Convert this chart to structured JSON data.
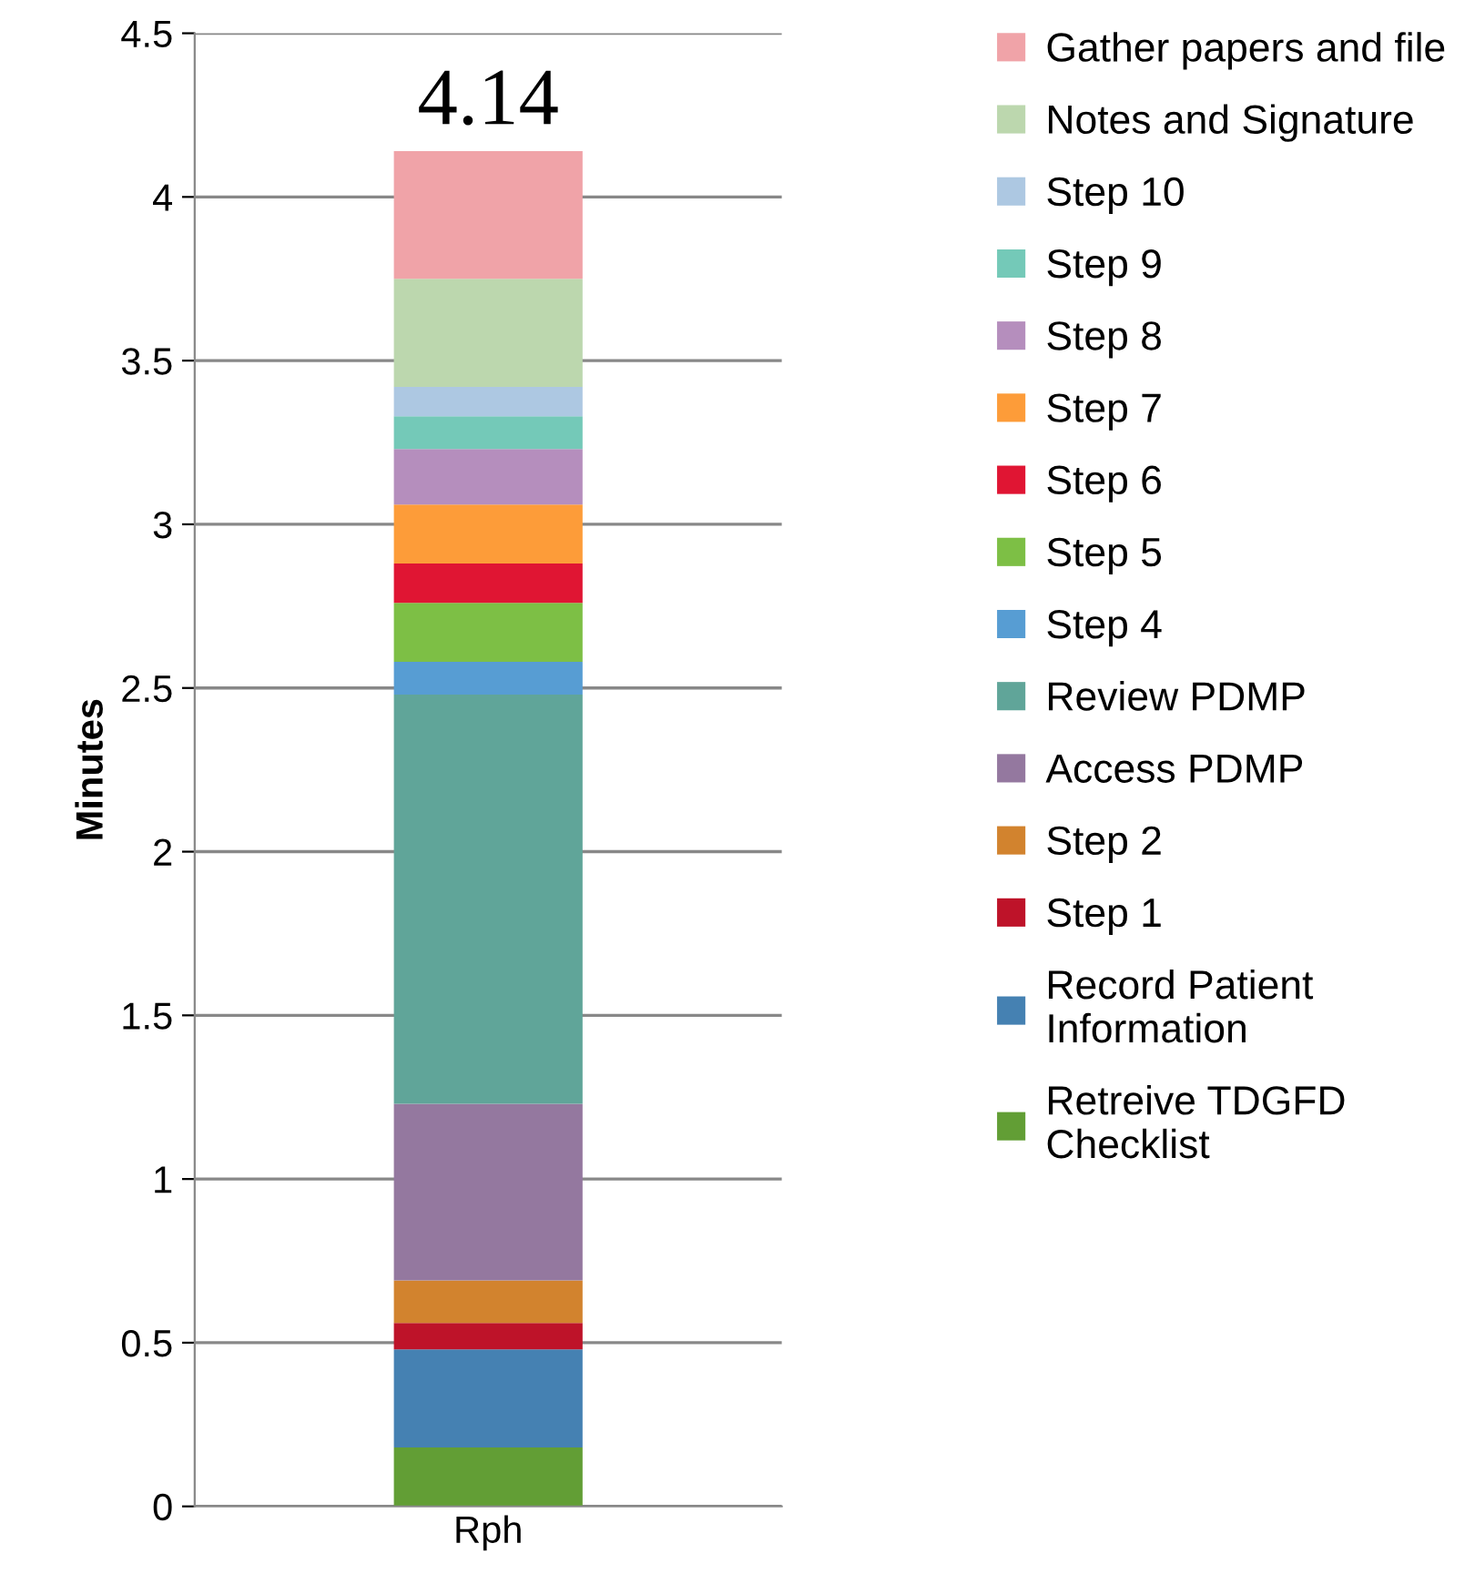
{
  "chart_data": {
    "type": "bar",
    "stacked": true,
    "ylabel": "Minutes",
    "categories": [
      "Rph"
    ],
    "series": [
      {
        "name": "Retreive TDGFD\nChecklist",
        "color": "#629e35",
        "values": [
          0.18
        ]
      },
      {
        "name": "Record Patient\nInformation",
        "color": "#4581b2",
        "values": [
          0.3
        ]
      },
      {
        "name": "Step 1",
        "color": "#be1329",
        "values": [
          0.08
        ]
      },
      {
        "name": "Step 2",
        "color": "#d2832e",
        "values": [
          0.13
        ]
      },
      {
        "name": "Access PDMP",
        "color": "#94789f",
        "values": [
          0.54
        ]
      },
      {
        "name": "Review PDMP",
        "color": "#60a599",
        "values": [
          1.25
        ]
      },
      {
        "name": "Step 4",
        "color": "#579dd3",
        "values": [
          0.1
        ]
      },
      {
        "name": "Step 5",
        "color": "#7dbf45",
        "values": [
          0.18
        ]
      },
      {
        "name": "Step 6",
        "color": "#e01533",
        "values": [
          0.12
        ]
      },
      {
        "name": "Step 7",
        "color": "#fd9c39",
        "values": [
          0.18
        ]
      },
      {
        "name": "Step 8",
        "color": "#b58ebd",
        "values": [
          0.17
        ]
      },
      {
        "name": "Step 9",
        "color": "#74c9b8",
        "values": [
          0.1
        ]
      },
      {
        "name": "Step 10",
        "color": "#adc8e2",
        "values": [
          0.09
        ]
      },
      {
        "name": "Notes and Signature",
        "color": "#bcd7ae",
        "values": [
          0.33
        ]
      },
      {
        "name": "Gather papers and file",
        "color": "#f0a3a8",
        "values": [
          0.39
        ]
      }
    ],
    "totals": [
      "4.14"
    ],
    "ylim": [
      0,
      4.5
    ],
    "yticks": [
      0,
      0.5,
      1,
      1.5,
      2,
      2.5,
      3,
      3.5,
      4,
      4.5
    ],
    "grid": "y",
    "legend": "right"
  }
}
